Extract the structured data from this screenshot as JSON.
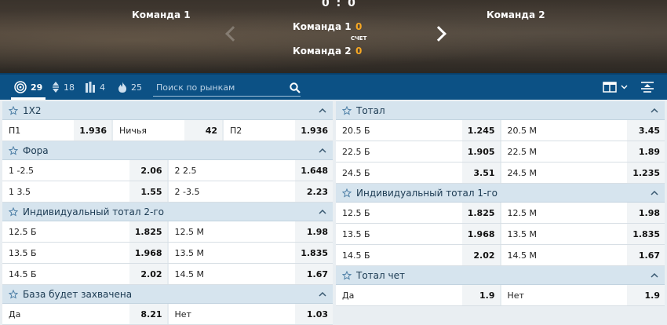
{
  "banner": {
    "team1_name": "Команда 1",
    "team2_name": "Команда 2",
    "score_total": "0 : 0",
    "row1_team": "Команда 1",
    "row1_score": "0",
    "row2_team": "Команда 2",
    "row2_score": "0",
    "score_label": "СЧЕТ"
  },
  "toolbar": {
    "all_count": "29",
    "sort_count": "18",
    "stats_count": "4",
    "hot_count": "25",
    "search_placeholder": "Поиск по рынкам"
  },
  "markets_left": [
    {
      "title": "1X2",
      "rows": [
        [
          {
            "label": "П1",
            "odd": "1.936"
          },
          {
            "label": "Ничья",
            "odd": "42"
          },
          {
            "label": "П2",
            "odd": "1.936"
          }
        ]
      ]
    },
    {
      "title": "Фора",
      "rows": [
        [
          {
            "label": "1 -2.5",
            "odd": "2.06"
          },
          {
            "label": "2 2.5",
            "odd": "1.648"
          }
        ],
        [
          {
            "label": "1 3.5",
            "odd": "1.55"
          },
          {
            "label": "2 -3.5",
            "odd": "2.23"
          }
        ]
      ]
    },
    {
      "title": "Индивидуальный тотал 2-го",
      "rows": [
        [
          {
            "label": "12.5 Б",
            "odd": "1.825"
          },
          {
            "label": "12.5 М",
            "odd": "1.98"
          }
        ],
        [
          {
            "label": "13.5 Б",
            "odd": "1.968"
          },
          {
            "label": "13.5 М",
            "odd": "1.835"
          }
        ],
        [
          {
            "label": "14.5 Б",
            "odd": "2.02"
          },
          {
            "label": "14.5 М",
            "odd": "1.67"
          }
        ]
      ]
    },
    {
      "title": "База будет захвачена",
      "rows": [
        [
          {
            "label": "Да",
            "odd": "8.21"
          },
          {
            "label": "Нет",
            "odd": "1.03"
          }
        ]
      ]
    }
  ],
  "markets_right": [
    {
      "title": "Тотал",
      "rows": [
        [
          {
            "label": "20.5 Б",
            "odd": "1.245"
          },
          {
            "label": "20.5 М",
            "odd": "3.45"
          }
        ],
        [
          {
            "label": "22.5 Б",
            "odd": "1.905"
          },
          {
            "label": "22.5 М",
            "odd": "1.89"
          }
        ],
        [
          {
            "label": "24.5 Б",
            "odd": "3.51"
          },
          {
            "label": "24.5 М",
            "odd": "1.235"
          }
        ]
      ]
    },
    {
      "title": "Индивидуальный тотал 1-го",
      "rows": [
        [
          {
            "label": "12.5 Б",
            "odd": "1.825"
          },
          {
            "label": "12.5 М",
            "odd": "1.98"
          }
        ],
        [
          {
            "label": "13.5 Б",
            "odd": "1.968"
          },
          {
            "label": "13.5 М",
            "odd": "1.835"
          }
        ],
        [
          {
            "label": "14.5 Б",
            "odd": "2.02"
          },
          {
            "label": "14.5 М",
            "odd": "1.67"
          }
        ]
      ]
    },
    {
      "title": "Тотал чет",
      "rows": [
        [
          {
            "label": "Да",
            "odd": "1.9"
          },
          {
            "label": "Нет",
            "odd": "1.9"
          }
        ]
      ]
    }
  ]
}
